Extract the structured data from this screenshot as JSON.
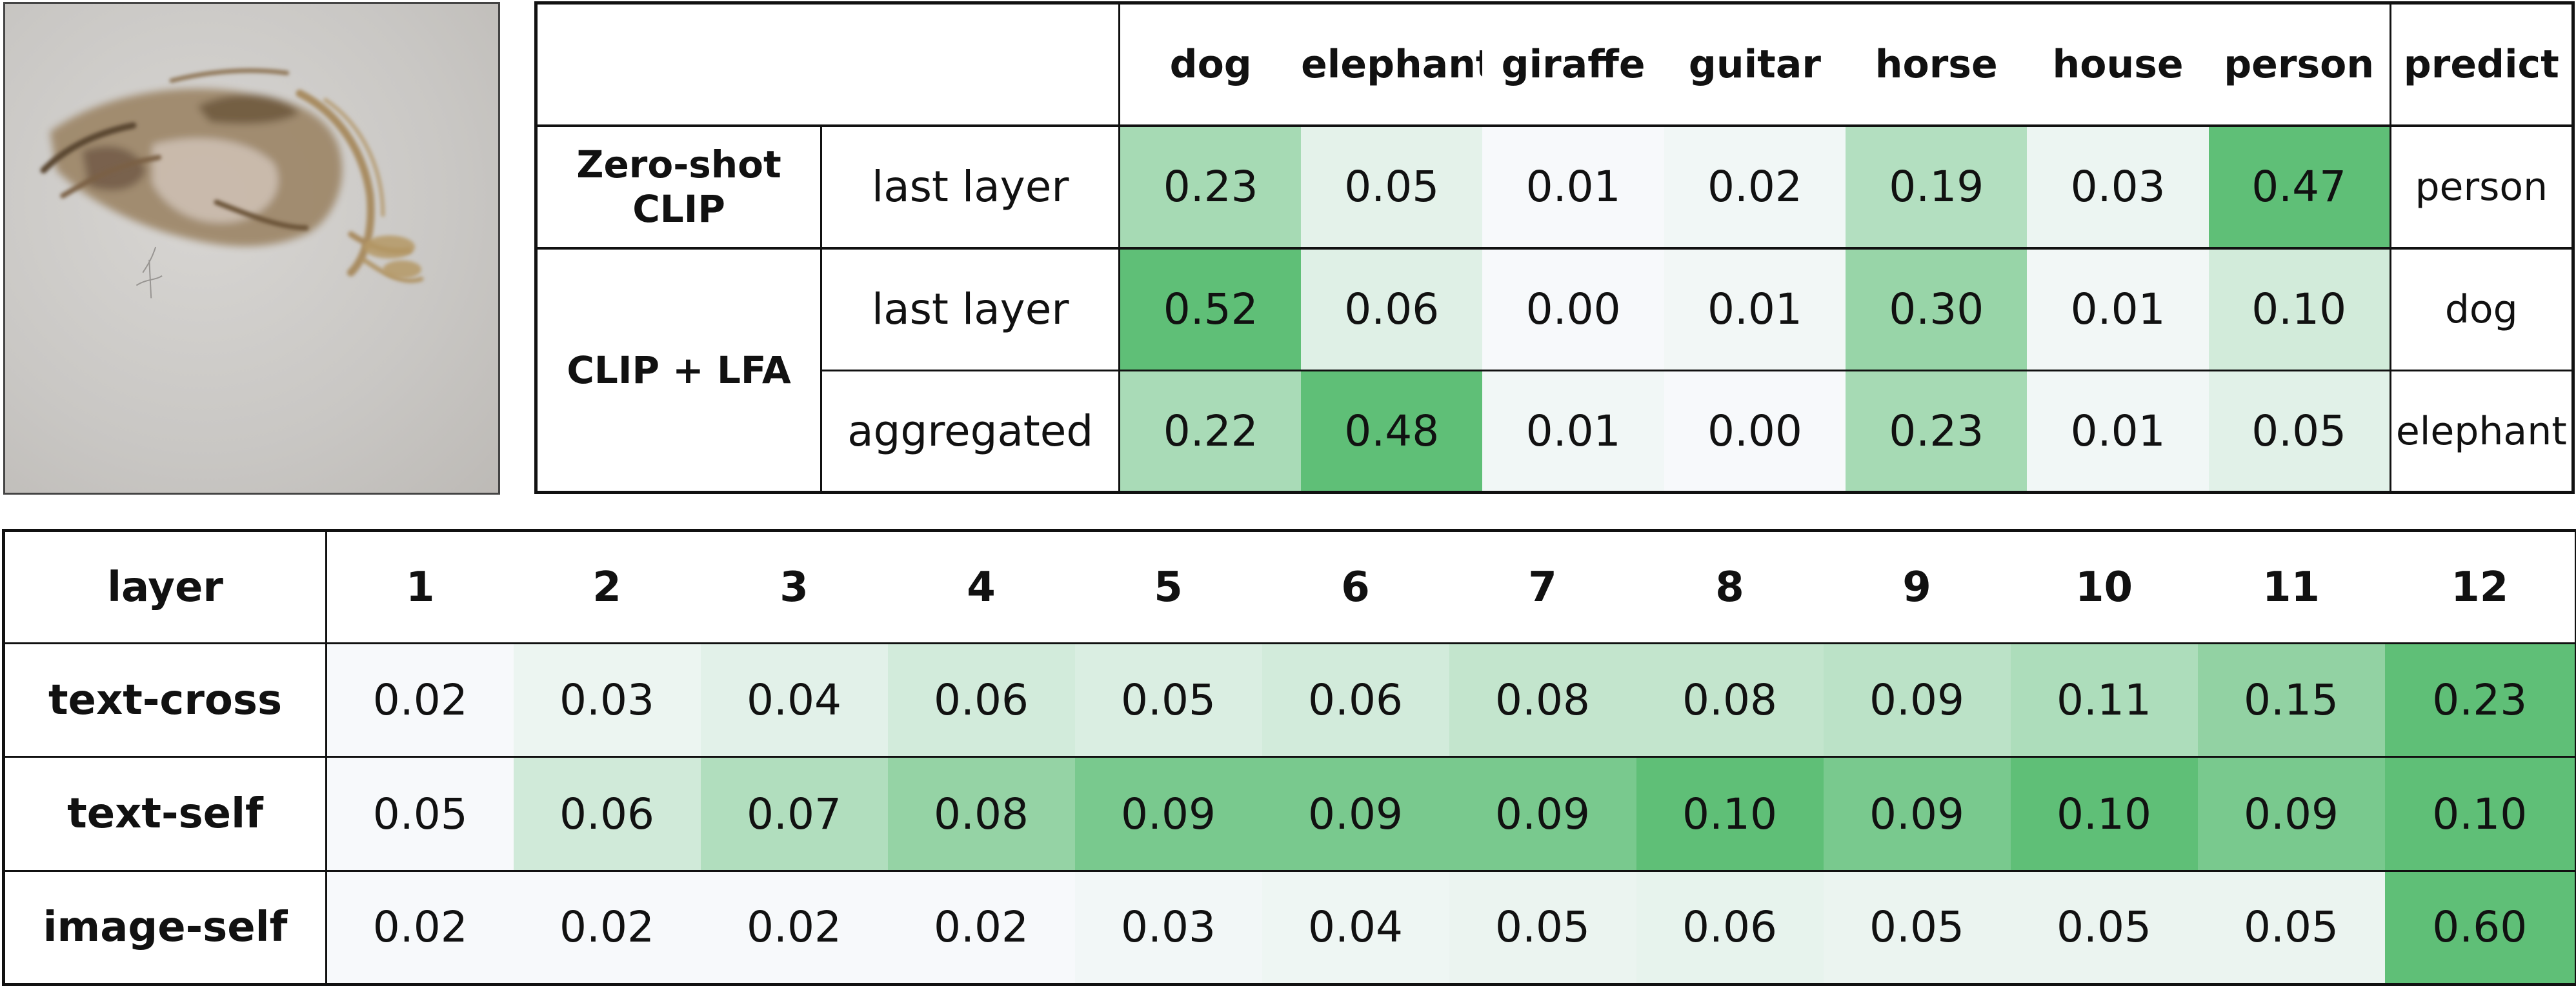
{
  "top_table": {
    "classes": [
      "dog",
      "elephant",
      "giraffe",
      "guitar",
      "horse",
      "house",
      "person"
    ],
    "predict_header": "predict",
    "groups": [
      {
        "name": "Zero-shot CLIP",
        "rows": [
          {
            "label": "last layer",
            "values": [
              "0.23",
              "0.05",
              "0.01",
              "0.02",
              "0.19",
              "0.03",
              "0.47"
            ],
            "predict": "person"
          }
        ]
      },
      {
        "name": "CLIP + LFA",
        "rows": [
          {
            "label": "last layer",
            "values": [
              "0.52",
              "0.06",
              "0.00",
              "0.01",
              "0.30",
              "0.01",
              "0.10"
            ],
            "predict": "dog"
          },
          {
            "label": "aggregated",
            "values": [
              "0.22",
              "0.48",
              "0.01",
              "0.00",
              "0.23",
              "0.01",
              "0.05"
            ],
            "predict": "elephant"
          }
        ]
      }
    ]
  },
  "bottom_table": {
    "header_label": "layer",
    "layers": [
      "1",
      "2",
      "3",
      "4",
      "5",
      "6",
      "7",
      "8",
      "9",
      "10",
      "11",
      "12"
    ],
    "rows": [
      {
        "label": "text-cross",
        "values": [
          "0.02",
          "0.03",
          "0.04",
          "0.06",
          "0.05",
          "0.06",
          "0.08",
          "0.08",
          "0.09",
          "0.11",
          "0.15",
          "0.23"
        ]
      },
      {
        "label": "text-self",
        "values": [
          "0.05",
          "0.06",
          "0.07",
          "0.08",
          "0.09",
          "0.09",
          "0.09",
          "0.10",
          "0.09",
          "0.10",
          "0.09",
          "0.10"
        ]
      },
      {
        "label": "image-self",
        "values": [
          "0.02",
          "0.02",
          "0.02",
          "0.02",
          "0.03",
          "0.04",
          "0.05",
          "0.06",
          "0.05",
          "0.05",
          "0.05",
          "0.60"
        ]
      }
    ]
  },
  "colors": {
    "heat_low": "#f7f9fb",
    "heat_high": "#5fbf77",
    "border": "#111111"
  }
}
